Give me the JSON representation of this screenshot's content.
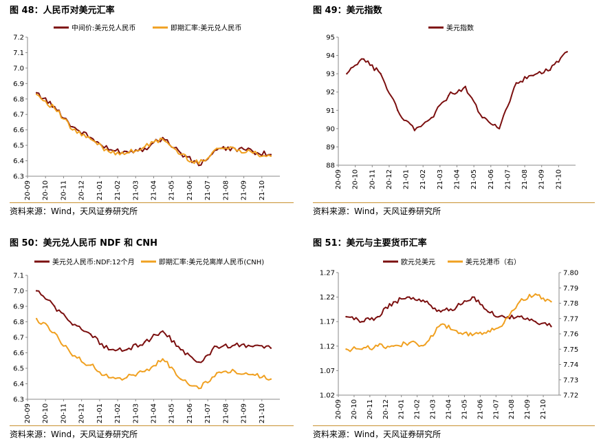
{
  "source_text": "资料来源：Wind，天风证券研究所",
  "colors": {
    "dark_red": "#7b0f0f",
    "orange": "#f0a020",
    "rule": "#c8902e"
  },
  "panels": [
    {
      "title": "图 48：人民币对美元汇率"
    },
    {
      "title": "图 49：美元指数"
    },
    {
      "title": "图 50：美元兑人民币 NDF 和 CNH"
    },
    {
      "title": "图 51：美元与主要货币汇率"
    }
  ],
  "chart_data": [
    {
      "type": "line",
      "x": [
        "20-09",
        "20-10",
        "20-11",
        "20-12",
        "21-01",
        "21-02",
        "21-03",
        "21-04",
        "21-05",
        "21-06",
        "21-07",
        "21-08",
        "21-09",
        "21-10"
      ],
      "xlabel": "",
      "ylabel": "",
      "ylim": [
        6.3,
        7.2
      ],
      "yticks": [
        "6.3",
        "6.4",
        "6.5",
        "6.6",
        "6.7",
        "6.8",
        "6.9",
        "7.0",
        "7.1",
        "7.2"
      ],
      "grid": false,
      "legend": "top-center",
      "series": [
        {
          "name": "中间价:美元兑人民币",
          "color": "#7b0f0f",
          "values": [
            6.84,
            6.75,
            6.62,
            6.55,
            6.47,
            6.46,
            6.48,
            6.55,
            6.45,
            6.37,
            6.47,
            6.48,
            6.46,
            6.44
          ]
        },
        {
          "name": "即期汇率:美元兑人民币",
          "color": "#f0a020",
          "values": [
            6.83,
            6.74,
            6.6,
            6.54,
            6.46,
            6.45,
            6.49,
            6.54,
            6.44,
            6.38,
            6.48,
            6.48,
            6.45,
            6.43
          ]
        }
      ]
    },
    {
      "type": "line",
      "x": [
        "20-09",
        "20-10",
        "20-11",
        "20-12",
        "21-01",
        "21-02",
        "21-03",
        "21-04",
        "21-05",
        "21-06",
        "21-07",
        "21-08",
        "21-09",
        "21-10"
      ],
      "xlabel": "",
      "ylabel": "",
      "ylim": [
        88,
        95
      ],
      "yticks": [
        "88",
        "89",
        "90",
        "91",
        "92",
        "93",
        "94",
        "95"
      ],
      "grid": false,
      "legend": "top-center",
      "series": [
        {
          "name": "美元指数",
          "color": "#7b0f0f",
          "values": [
            93.0,
            93.8,
            93.0,
            91.0,
            89.9,
            90.6,
            91.8,
            92.3,
            90.6,
            90.0,
            92.5,
            92.9,
            93.2,
            94.2
          ]
        }
      ]
    },
    {
      "type": "line",
      "x": [
        "20-09",
        "20-10",
        "20-11",
        "20-12",
        "21-01",
        "21-02",
        "21-03",
        "21-04",
        "21-05",
        "21-06",
        "21-07",
        "21-08",
        "21-09",
        "21-10"
      ],
      "xlabel": "",
      "ylabel": "",
      "ylim": [
        6.3,
        7.1
      ],
      "yticks": [
        "6.3",
        "6.4",
        "6.5",
        "6.6",
        "6.7",
        "6.8",
        "6.9",
        "7.0",
        "7.1"
      ],
      "grid": false,
      "legend": "top-center",
      "series": [
        {
          "name": "美元兑人民币:NDF:12个月",
          "color": "#7b0f0f",
          "values": [
            7.0,
            6.9,
            6.78,
            6.72,
            6.62,
            6.62,
            6.67,
            6.74,
            6.62,
            6.54,
            6.64,
            6.65,
            6.64,
            6.63
          ]
        },
        {
          "name": "即期汇率:美元兑离岸人民币(CNH)",
          "color": "#f0a020",
          "values": [
            6.82,
            6.73,
            6.58,
            6.52,
            6.44,
            6.44,
            6.48,
            6.56,
            6.43,
            6.37,
            6.47,
            6.48,
            6.46,
            6.43
          ]
        }
      ]
    },
    {
      "type": "line",
      "x": [
        "20-09",
        "20-10",
        "20-11",
        "20-12",
        "21-01",
        "21-02",
        "21-03",
        "21-04",
        "21-05",
        "21-06",
        "21-07",
        "21-08",
        "21-09",
        "21-10"
      ],
      "xlabel": "",
      "ylabel": "",
      "y2label": "",
      "ylim": [
        1.02,
        1.27
      ],
      "y2lim": [
        7.72,
        7.8
      ],
      "yticks": [
        "1.02",
        "1.07",
        "1.12",
        "1.17",
        "1.22",
        "1.27"
      ],
      "y2ticks": [
        "7.72",
        "7.73",
        "7.74",
        "7.75",
        "7.76",
        "7.77",
        "7.78",
        "7.79",
        "7.80"
      ],
      "grid": false,
      "legend": "top-center",
      "series": [
        {
          "name": "欧元兑美元",
          "axis": "left",
          "color": "#7b0f0f",
          "values": [
            1.18,
            1.17,
            1.18,
            1.21,
            1.22,
            1.21,
            1.19,
            1.2,
            1.22,
            1.19,
            1.18,
            1.18,
            1.17,
            1.16
          ]
        },
        {
          "name": "美元兑港币（右）",
          "axis": "right",
          "color": "#f0a020",
          "values": [
            7.75,
            7.75,
            7.752,
            7.752,
            7.754,
            7.753,
            7.766,
            7.762,
            7.759,
            7.762,
            7.767,
            7.781,
            7.786,
            7.781
          ]
        }
      ]
    }
  ]
}
